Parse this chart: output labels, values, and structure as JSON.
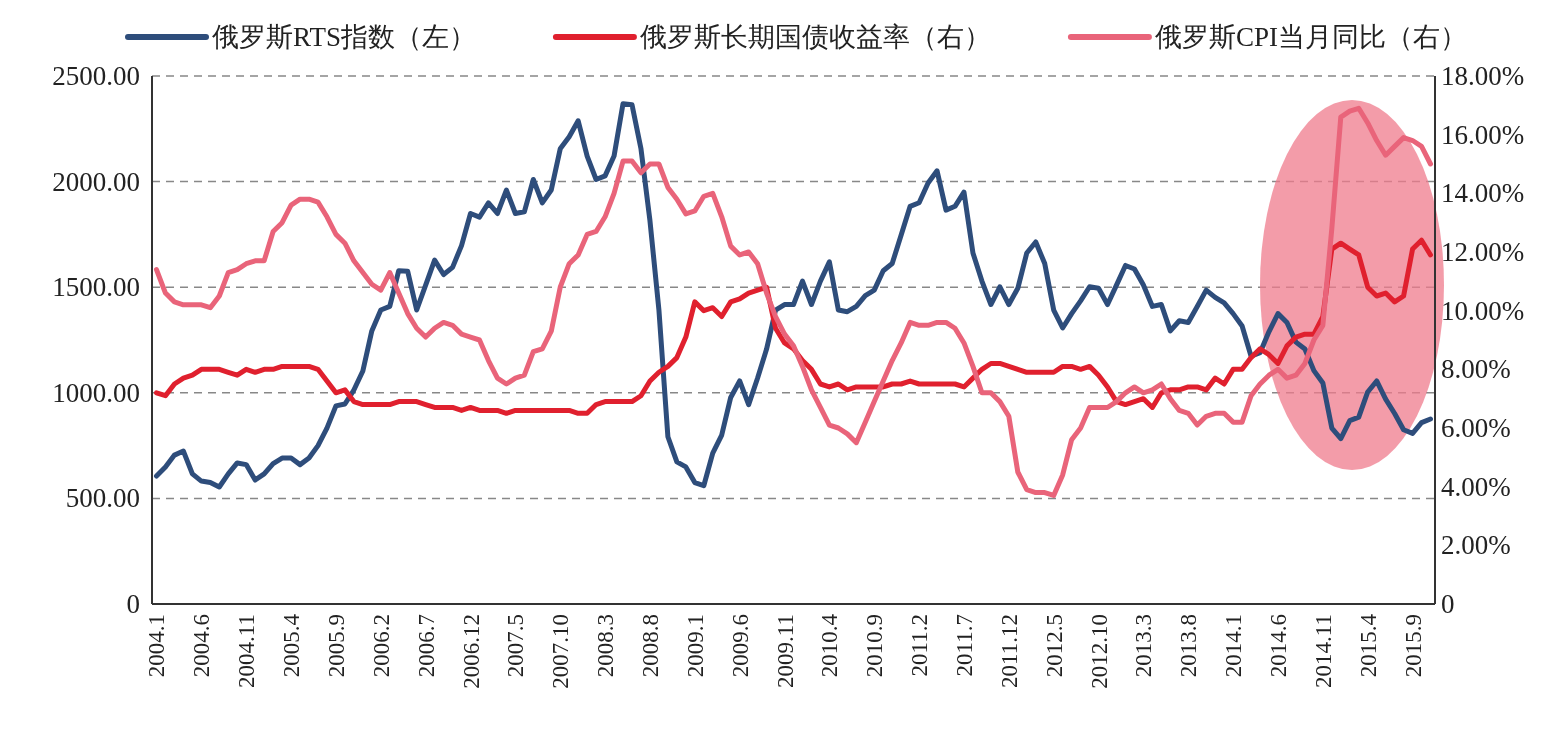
{
  "chart_data": {
    "type": "line",
    "categories": [
      "2004.1",
      null,
      null,
      null,
      null,
      "2004.6",
      null,
      null,
      null,
      null,
      "2004.11",
      null,
      null,
      null,
      null,
      "2005.4",
      null,
      null,
      null,
      null,
      "2005.9",
      null,
      null,
      null,
      null,
      "2006.2",
      null,
      null,
      null,
      null,
      "2006.7",
      null,
      null,
      null,
      null,
      "2006.12",
      null,
      null,
      null,
      null,
      "2007.5",
      null,
      null,
      null,
      null,
      "2007.10",
      null,
      null,
      null,
      null,
      "2008.3",
      null,
      null,
      null,
      null,
      "2008.8",
      null,
      null,
      null,
      null,
      "2009.1",
      null,
      null,
      null,
      null,
      "2009.6",
      null,
      null,
      null,
      null,
      "2009.11",
      null,
      null,
      null,
      null,
      "2010.4",
      null,
      null,
      null,
      null,
      "2010.9",
      null,
      null,
      null,
      null,
      "2011.2",
      null,
      null,
      null,
      null,
      "2011.7",
      null,
      null,
      null,
      null,
      "2011.12",
      null,
      null,
      null,
      null,
      "2012.5",
      null,
      null,
      null,
      null,
      "2012.10",
      null,
      null,
      null,
      null,
      "2013.3",
      null,
      null,
      null,
      null,
      "2013.8",
      null,
      null,
      null,
      null,
      "2014.1",
      null,
      null,
      null,
      null,
      "2014.6",
      null,
      null,
      null,
      null,
      "2014.11",
      null,
      null,
      null,
      null,
      "2015.4",
      null,
      null,
      null,
      null,
      "2015.9",
      null,
      null
    ],
    "series": [
      {
        "name": "俄罗斯RTS指数（左）",
        "color": "#2e4d7b",
        "values": [
          606,
          649,
          705,
          724,
          616,
          582,
          575,
          554,
          616,
          668,
          660,
          587,
          616,
          665,
          691,
          691,
          660,
          691,
          750,
          833,
          938,
          947,
          1013,
          1103,
          1293,
          1392,
          1409,
          1578,
          1575,
          1392,
          1510,
          1628,
          1560,
          1594,
          1697,
          1849,
          1832,
          1899,
          1849,
          1960,
          1849,
          1857,
          2010,
          1899,
          1960,
          2155,
          2212,
          2288,
          2121,
          2010,
          2027,
          2121,
          2369,
          2364,
          2155,
          1815,
          1392,
          792,
          673,
          649,
          575,
          560,
          714,
          800,
          978,
          1056,
          944,
          1070,
          1207,
          1392,
          1418,
          1418,
          1529,
          1418,
          1529,
          1620,
          1392,
          1384,
          1409,
          1460,
          1486,
          1578,
          1612,
          1747,
          1883,
          1900,
          1993,
          2051,
          1865,
          1883,
          1950,
          1662,
          1529,
          1418,
          1502,
          1418,
          1495,
          1662,
          1714,
          1612,
          1392,
          1307,
          1375,
          1435,
          1502,
          1495,
          1418,
          1510,
          1603,
          1586,
          1510,
          1409,
          1418,
          1293,
          1341,
          1333,
          1409,
          1486,
          1452,
          1426,
          1375,
          1316,
          1173,
          1190,
          1290,
          1375,
          1333,
          1240,
          1207,
          1105,
          1046,
          833,
          783,
          868,
          885,
          1004,
          1056,
          970,
          902,
          825,
          808,
          859,
          876
        ]
      },
      {
        "name": "俄罗斯长期国债收益率（右）",
        "color": "#e0202e",
        "axis": "y2",
        "values": [
          7.2,
          7.1,
          7.5,
          7.7,
          7.8,
          8.0,
          8.0,
          8.0,
          7.9,
          7.8,
          8.0,
          7.9,
          8.0,
          8.0,
          8.1,
          8.1,
          8.1,
          8.1,
          8.0,
          7.6,
          7.2,
          7.3,
          6.9,
          6.8,
          6.8,
          6.8,
          6.8,
          6.9,
          6.9,
          6.9,
          6.8,
          6.7,
          6.7,
          6.7,
          6.6,
          6.7,
          6.6,
          6.6,
          6.6,
          6.5,
          6.6,
          6.6,
          6.6,
          6.6,
          6.6,
          6.6,
          6.6,
          6.5,
          6.5,
          6.8,
          6.9,
          6.9,
          6.9,
          6.9,
          7.1,
          7.6,
          7.9,
          8.1,
          8.4,
          9.1,
          10.3,
          10.0,
          10.1,
          9.8,
          10.3,
          10.4,
          10.6,
          10.7,
          10.8,
          9.4,
          8.9,
          8.7,
          8.3,
          8.0,
          7.5,
          7.4,
          7.5,
          7.3,
          7.4,
          7.4,
          7.4,
          7.4,
          7.5,
          7.5,
          7.6,
          7.5,
          7.5,
          7.5,
          7.5,
          7.5,
          7.4,
          7.7,
          8.0,
          8.2,
          8.2,
          8.1,
          8.0,
          7.9,
          7.9,
          7.9,
          7.9,
          8.1,
          8.1,
          8.0,
          8.1,
          7.8,
          7.4,
          6.9,
          6.8,
          6.9,
          7.0,
          6.7,
          7.2,
          7.3,
          7.3,
          7.4,
          7.4,
          7.3,
          7.7,
          7.5,
          8.0,
          8.0,
          8.4,
          8.7,
          8.5,
          8.2,
          8.8,
          9.1,
          9.2,
          9.2,
          9.8,
          12.1,
          12.3,
          12.1,
          11.9,
          10.8,
          10.5,
          10.6,
          10.3,
          10.5,
          12.1,
          12.4,
          11.9
        ]
      },
      {
        "name": "俄罗斯CPI当月同比（右）",
        "color": "#e9647a",
        "axis": "y2",
        "values": [
          11.4,
          10.6,
          10.3,
          10.2,
          10.2,
          10.2,
          10.1,
          10.5,
          11.3,
          11.4,
          11.6,
          11.7,
          11.7,
          12.7,
          13.0,
          13.6,
          13.8,
          13.8,
          13.7,
          13.2,
          12.6,
          12.3,
          11.7,
          11.3,
          10.9,
          10.7,
          11.3,
          10.6,
          9.9,
          9.4,
          9.1,
          9.4,
          9.6,
          9.5,
          9.2,
          9.1,
          9.0,
          8.3,
          7.7,
          7.5,
          7.7,
          7.8,
          8.6,
          8.7,
          9.3,
          10.8,
          11.6,
          11.9,
          12.6,
          12.7,
          13.2,
          14.0,
          15.1,
          15.1,
          14.7,
          15.0,
          15.0,
          14.2,
          13.8,
          13.3,
          13.4,
          13.9,
          14.0,
          13.2,
          12.2,
          11.9,
          12.0,
          11.6,
          10.6,
          9.8,
          9.2,
          8.8,
          8.1,
          7.3,
          6.7,
          6.1,
          6.0,
          5.8,
          5.5,
          6.2,
          6.9,
          7.6,
          8.3,
          8.9,
          9.6,
          9.5,
          9.5,
          9.6,
          9.6,
          9.4,
          8.9,
          8.1,
          7.2,
          7.2,
          6.9,
          6.4,
          4.5,
          3.9,
          3.8,
          3.8,
          3.7,
          4.4,
          5.6,
          6.0,
          6.7,
          6.7,
          6.7,
          6.9,
          7.2,
          7.4,
          7.2,
          7.3,
          7.5,
          7.0,
          6.6,
          6.5,
          6.1,
          6.4,
          6.5,
          6.5,
          6.2,
          6.2,
          7.1,
          7.5,
          7.8,
          8.0,
          7.7,
          7.8,
          8.2,
          9.0,
          9.5,
          12.8,
          16.6,
          16.8,
          16.9,
          16.4,
          15.8,
          15.3,
          15.6,
          15.9,
          15.8,
          15.6,
          15.0
        ]
      }
    ],
    "ylim": [
      0,
      2500
    ],
    "yticks": [
      0,
      {
        "value": 500,
        "label": "500.00"
      },
      {
        "value": 1000,
        "label": "1000.00"
      },
      {
        "value": 1500,
        "label": "1500.00"
      },
      {
        "value": 2000,
        "label": "2000.00"
      },
      {
        "value": 2500,
        "label": "2500.00"
      }
    ],
    "y2lim": [
      0,
      18
    ],
    "y2ticks": [
      0,
      {
        "value": 2,
        "label": "2.00%"
      },
      {
        "value": 4,
        "label": "4.00%"
      },
      {
        "value": 6,
        "label": "6.00%"
      },
      {
        "value": 8,
        "label": "8.00%"
      },
      {
        "value": 10,
        "label": "10.00%"
      },
      {
        "value": 12,
        "label": "12.00%"
      },
      {
        "value": 14,
        "label": "14.00%"
      },
      {
        "value": 16,
        "label": "16.00%"
      },
      {
        "value": 18,
        "label": "18.00%"
      }
    ],
    "grid": "y",
    "legend": "top"
  }
}
